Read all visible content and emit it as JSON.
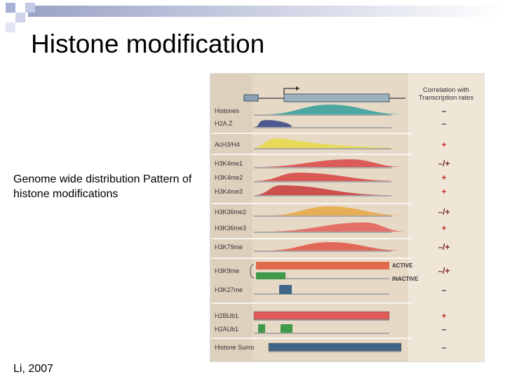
{
  "title": "Histone modification",
  "caption": "Genome wide distribution Pattern of histone modifications",
  "citation": "Li, 2007",
  "figure": {
    "header": [
      "Correlation with",
      "Transcription rates"
    ],
    "state_labels": [
      "ACTIVE",
      "INACTIVE"
    ],
    "rows": [
      {
        "label": "Histones",
        "sign": "–"
      },
      {
        "label": "H2A.Z",
        "sign": "–"
      },
      {
        "label": "AcH3/H4",
        "sign": "+"
      },
      {
        "label": "H3K4me1",
        "sign": "–/+"
      },
      {
        "label": "H3K4me2",
        "sign": "+"
      },
      {
        "label": "H3K4me3",
        "sign": "+"
      },
      {
        "label": "H3K36me2",
        "sign": "–/+"
      },
      {
        "label": "H3K36me3",
        "sign": "+"
      },
      {
        "label": "H3K79me",
        "sign": "–/+"
      },
      {
        "label": "H3K9me",
        "sign": "–/+"
      },
      {
        "label": "H3K27me",
        "sign": "–"
      },
      {
        "label": "H2BUb1",
        "sign": "+"
      },
      {
        "label": "H2AUb1",
        "sign": "–"
      },
      {
        "label": "Histone Sumo",
        "sign": "–"
      }
    ]
  }
}
